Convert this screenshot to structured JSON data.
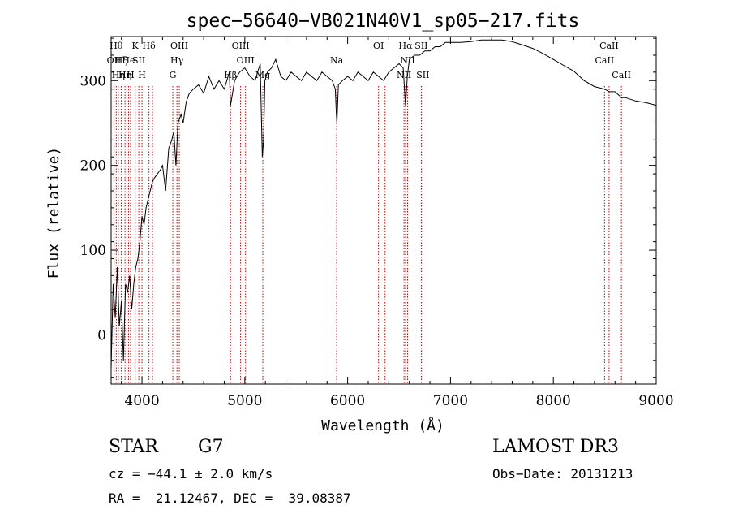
{
  "chart_data": {
    "type": "line",
    "title": "spec−56640−VB021N40V1_sp05−217.fits",
    "xlabel": "Wavelength (Å)",
    "ylabel": "Flux (relative)",
    "xlim": [
      3700,
      9000
    ],
    "ylim": [
      -58,
      352
    ],
    "xticks": [
      4000,
      5000,
      6000,
      7000,
      8000,
      9000
    ],
    "yticks": [
      0,
      100,
      200,
      300
    ],
    "series": [
      {
        "name": "flux",
        "x": [
          3700,
          3720,
          3740,
          3760,
          3780,
          3800,
          3820,
          3840,
          3860,
          3880,
          3900,
          3920,
          3940,
          3960,
          3980,
          4000,
          4020,
          4040,
          4060,
          4080,
          4100,
          4120,
          4150,
          4180,
          4200,
          4230,
          4260,
          4290,
          4310,
          4330,
          4350,
          4380,
          4400,
          4430,
          4460,
          4500,
          4550,
          4600,
          4650,
          4700,
          4750,
          4800,
          4850,
          4860,
          4900,
          4950,
          5000,
          5050,
          5100,
          5150,
          5170,
          5183,
          5195,
          5220,
          5260,
          5300,
          5350,
          5400,
          5450,
          5500,
          5550,
          5600,
          5650,
          5700,
          5750,
          5800,
          5850,
          5880,
          5890,
          5896,
          5910,
          5950,
          6000,
          6050,
          6100,
          6150,
          6200,
          6250,
          6300,
          6350,
          6400,
          6450,
          6500,
          6540,
          6563,
          6580,
          6600,
          6650,
          6700,
          6750,
          6800,
          6850,
          6900,
          6950,
          7000,
          7100,
          7200,
          7300,
          7400,
          7500,
          7600,
          7700,
          7800,
          7900,
          8000,
          8100,
          8200,
          8300,
          8400,
          8500,
          8542,
          8600,
          8662,
          8700,
          8800,
          8900,
          9000
        ],
        "values": [
          -40,
          60,
          20,
          80,
          10,
          40,
          -30,
          60,
          50,
          70,
          30,
          60,
          80,
          90,
          110,
          140,
          130,
          150,
          160,
          170,
          180,
          185,
          190,
          195,
          200,
          170,
          220,
          230,
          240,
          200,
          250,
          260,
          250,
          275,
          285,
          290,
          295,
          285,
          305,
          290,
          300,
          290,
          310,
          270,
          300,
          310,
          315,
          305,
          300,
          320,
          210,
          230,
          300,
          310,
          315,
          325,
          305,
          300,
          310,
          305,
          300,
          310,
          305,
          300,
          310,
          305,
          300,
          290,
          260,
          250,
          295,
          300,
          305,
          300,
          310,
          305,
          300,
          310,
          305,
          300,
          310,
          315,
          320,
          315,
          270,
          305,
          325,
          330,
          330,
          335,
          335,
          340,
          340,
          345,
          345,
          345,
          346,
          348,
          348,
          348,
          346,
          342,
          338,
          332,
          325,
          318,
          311,
          300,
          293,
          290,
          287,
          287,
          280,
          280,
          276,
          274,
          271
        ]
      }
    ],
    "lines": [
      {
        "wl": 3727,
        "label": "OII",
        "row": 1
      },
      {
        "wl": 3750,
        "label": "Hθ",
        "row": 0
      },
      {
        "wl": 3770,
        "label": "Hη",
        "row": 2
      },
      {
        "wl": 3798,
        "label": "Hζ",
        "row": 1
      },
      {
        "wl": 3835,
        "label": "Hη",
        "row": 2
      },
      {
        "wl": 3869,
        "label": "He",
        "row": 1
      },
      {
        "wl": 3889,
        "label": "H",
        "row": 2
      },
      {
        "wl": 3934,
        "label": "K",
        "row": 0
      },
      {
        "wl": 3969,
        "label": "SII",
        "row": 1
      },
      {
        "wl": 4000,
        "label": "H",
        "row": 2
      },
      {
        "wl": 4068,
        "label": "Hδ",
        "row": 0
      },
      {
        "wl": 4102,
        "label": "",
        "row": 0
      },
      {
        "wl": 4300,
        "label": "G",
        "row": 2
      },
      {
        "wl": 4340,
        "label": "Hγ",
        "row": 1
      },
      {
        "wl": 4363,
        "label": "OIII",
        "row": 0
      },
      {
        "wl": 4861,
        "label": "Hβ",
        "row": 2
      },
      {
        "wl": 4959,
        "label": "OIII",
        "row": 0
      },
      {
        "wl": 5007,
        "label": "OIII",
        "row": 1
      },
      {
        "wl": 5175,
        "label": "Mg",
        "row": 2
      },
      {
        "wl": 5893,
        "label": "Na",
        "row": 1
      },
      {
        "wl": 6300,
        "label": "OI",
        "row": 0
      },
      {
        "wl": 6364,
        "label": "",
        "row": 0
      },
      {
        "wl": 6548,
        "label": "NII",
        "row": 2
      },
      {
        "wl": 6563,
        "label": "Hα",
        "row": 0
      },
      {
        "wl": 6583,
        "label": "NII",
        "row": 1
      },
      {
        "wl": 6716,
        "label": "SII",
        "row": 0
      },
      {
        "wl": 6731,
        "label": "SII",
        "row": 2
      },
      {
        "wl": 8498,
        "label": "CaII",
        "row": 1
      },
      {
        "wl": 8542,
        "label": "CaII",
        "row": 0
      },
      {
        "wl": 8662,
        "label": "CaII",
        "row": 2
      }
    ]
  },
  "info": {
    "star_class": "STAR",
    "subclass": "G7",
    "survey": "LAMOST DR3",
    "cz": "cz = −44.1 ± 2.0 km/s",
    "obs_date": "Obs−Date: 20131213",
    "coords": "RA =  21.12467, DEC =  39.08387"
  },
  "colors": {
    "axis": "#000000",
    "lines": "#c00000",
    "trace": "#000000"
  }
}
